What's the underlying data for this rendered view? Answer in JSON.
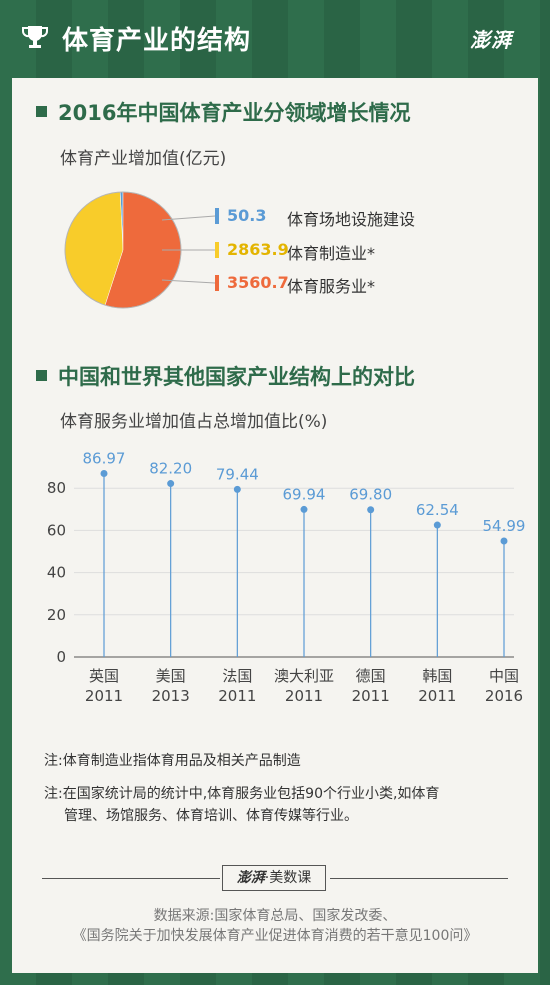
{
  "header": {
    "title": "体育产业的结构",
    "brand": "澎湃",
    "trophy_icon": "trophy-icon"
  },
  "section1": {
    "title": "2016年中国体育产业分领域增长情况",
    "subtitle": "体育产业增加值(亿元)"
  },
  "section2": {
    "title": "中国和世界其他国家产业结构上的对比",
    "subtitle": "体育服务业增加值占总增加值比(%)"
  },
  "notes": [
    "注:体育制造业指体育用品及相关产品制造",
    "注:在国家统计局的统计中,体育服务业包括90个行业小类,如体育",
    "管理、场馆服务、体育培训、体育传媒等行业。"
  ],
  "footer": {
    "brand_logo": "澎湃",
    "brand_sep": "·",
    "brand_name": "美数课",
    "source_line1": "数据来源:国家体育总局、国家发改委、",
    "source_line2": "《国务院关于加快发展体育产业促进体育消费的若干意见100问》"
  },
  "chart_data": [
    {
      "type": "pie",
      "title": "体育产业增加值(亿元)",
      "slices": [
        {
          "label": "体育场地设施建设",
          "value": 50.3,
          "display": "50.3",
          "color": "#5b9bd5"
        },
        {
          "label": "体育制造业*",
          "value": 2863.9,
          "display": "2863.9",
          "color": "#f8cc2a"
        },
        {
          "label": "体育服务业*",
          "value": 3560.7,
          "display": "3560.7",
          "color": "#ee6a3c"
        }
      ],
      "outline_color": "#b5b5b5"
    },
    {
      "type": "scatter",
      "title": "体育服务业增加值占总增加值比(%)",
      "categories": [
        "英国",
        "美国",
        "法国",
        "澳大利亚",
        "德国",
        "韩国",
        "中国"
      ],
      "years": [
        "2011",
        "2013",
        "2011",
        "2011",
        "2011",
        "2011",
        "2016"
      ],
      "values": [
        86.97,
        82.2,
        79.44,
        69.94,
        69.8,
        62.54,
        54.99
      ],
      "labels": [
        "86.97",
        "82.20",
        "79.44",
        "69.94",
        "69.80",
        "62.54",
        "54.99"
      ],
      "yticks": [
        "0",
        "20",
        "40",
        "60",
        "80"
      ],
      "ylim": [
        0,
        100
      ],
      "grid": true,
      "marker_color": "#5b9bd5"
    }
  ]
}
